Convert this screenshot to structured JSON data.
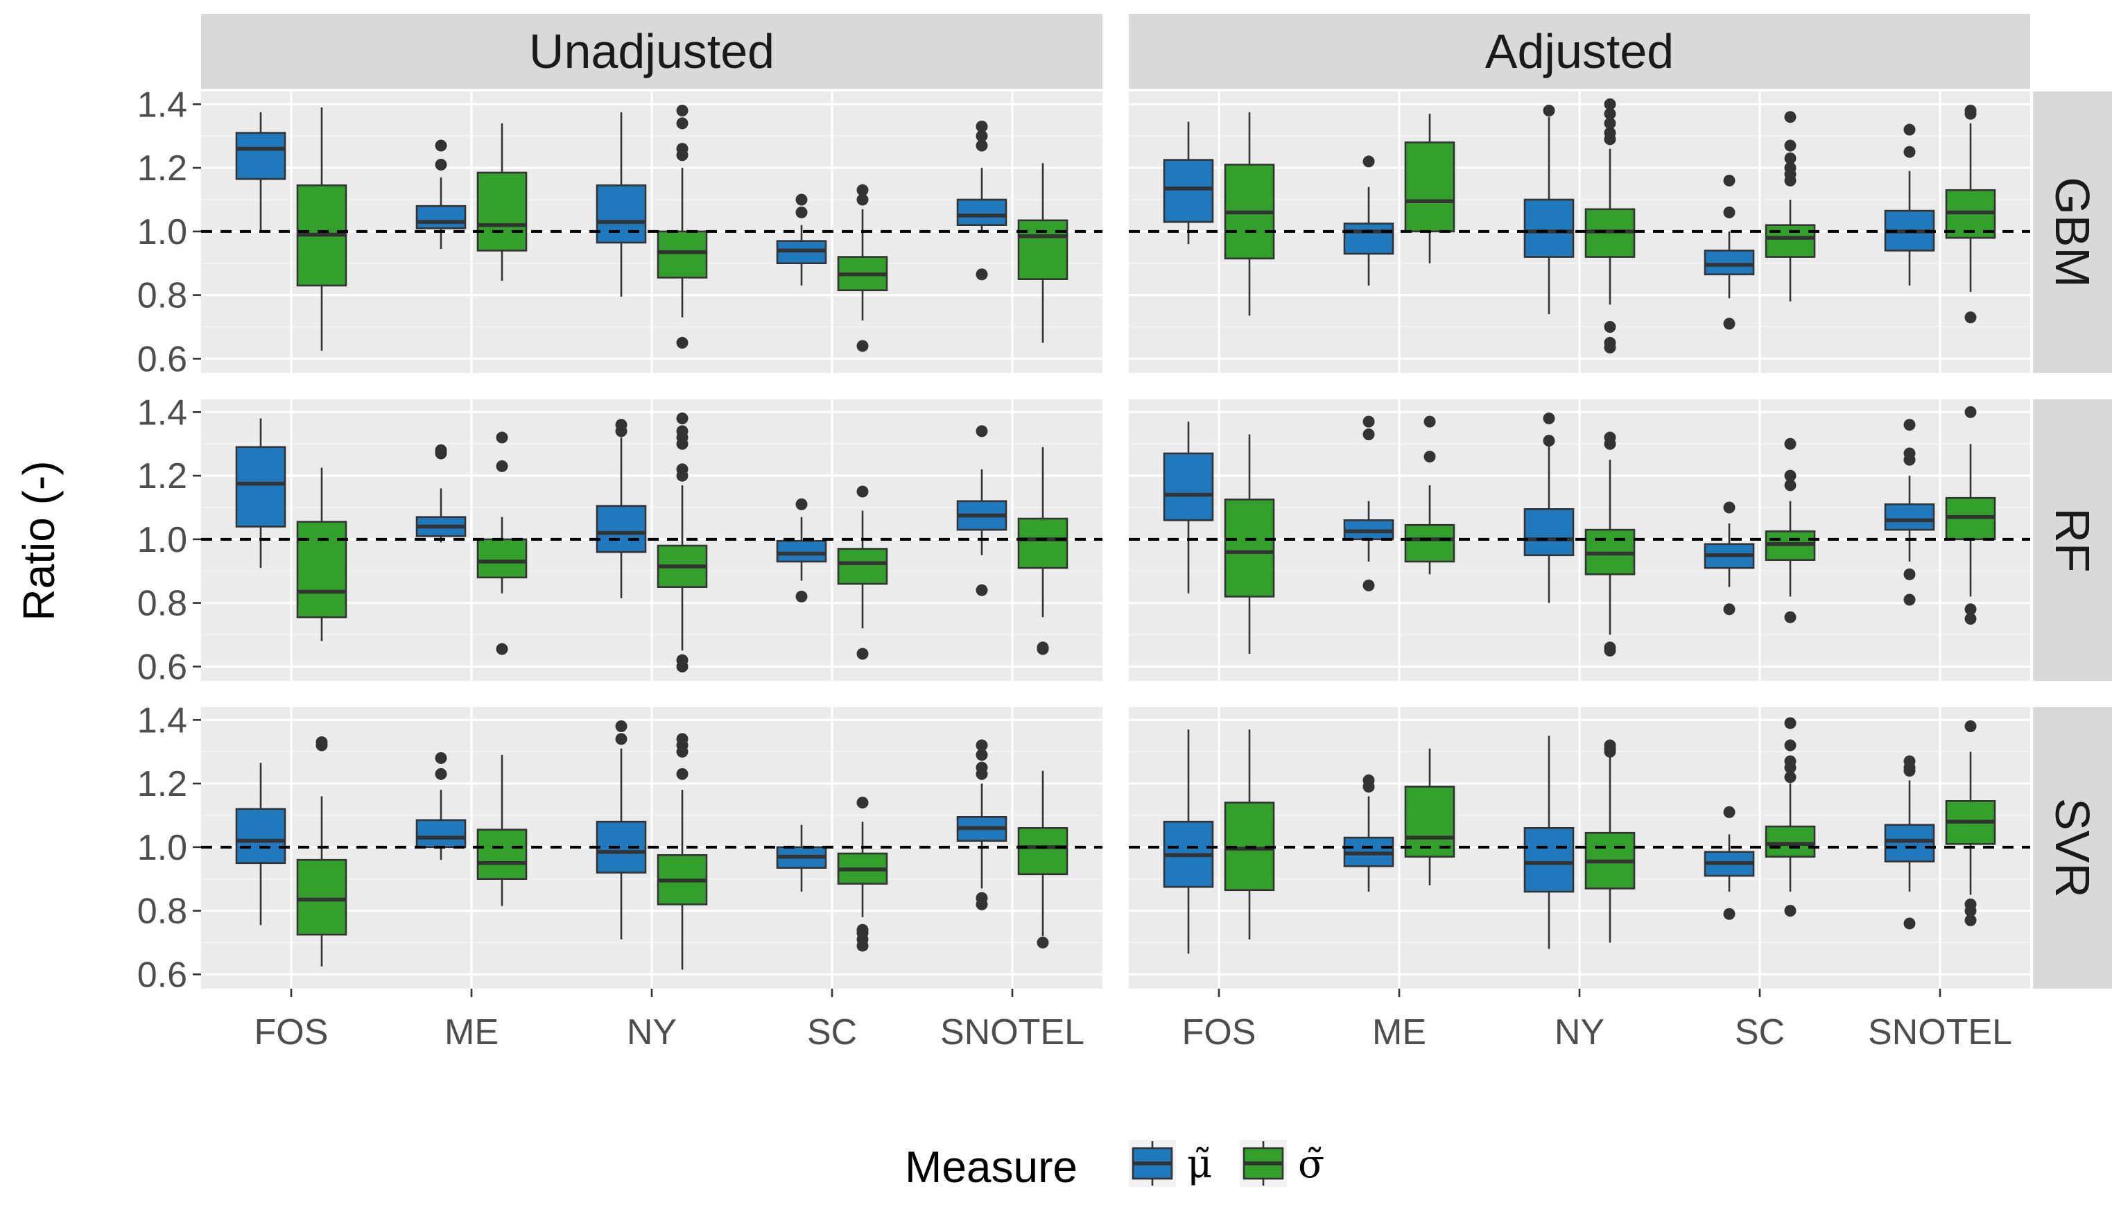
{
  "chart_data": {
    "type": "boxplot",
    "ylabel": "Ratio (-)",
    "xlabel": "",
    "ylim": [
      0.555,
      1.44
    ],
    "yticks": [
      0.6,
      0.8,
      1.0,
      1.2,
      1.4
    ],
    "ytick_labels": [
      "0.6",
      "0.8",
      "1.0",
      "1.2",
      "1.4"
    ],
    "reference_line": 1.0,
    "categories": [
      "FOS",
      "ME",
      "NY",
      "SC",
      "SNOTEL"
    ],
    "facet_columns": [
      "Unadjusted",
      "Adjusted"
    ],
    "facet_rows": [
      "GBM",
      "RF",
      "SVR"
    ],
    "legend": {
      "title": "Measure",
      "position": "bottom",
      "entries": [
        {
          "label": "μ̃",
          "color": "#2079bd"
        },
        {
          "label": "σ̃",
          "color": "#33a02c"
        }
      ]
    },
    "grid": true,
    "panels": [
      {
        "row": "GBM",
        "col": "Unadjusted",
        "boxes": [
          {
            "category": "FOS",
            "series": 0,
            "whislo": 1.0,
            "q1": 1.165,
            "med": 1.26,
            "q3": 1.31,
            "whishi": 1.375,
            "fliers": []
          },
          {
            "category": "FOS",
            "series": 1,
            "whislo": 0.625,
            "q1": 0.83,
            "med": 0.99,
            "q3": 1.145,
            "whishi": 1.39,
            "fliers": []
          },
          {
            "category": "ME",
            "series": 0,
            "whislo": 0.945,
            "q1": 1.01,
            "med": 1.03,
            "q3": 1.08,
            "whishi": 1.17,
            "fliers": [
              1.21,
              1.27
            ]
          },
          {
            "category": "ME",
            "series": 1,
            "whislo": 0.845,
            "q1": 0.94,
            "med": 1.02,
            "q3": 1.185,
            "whishi": 1.34,
            "fliers": []
          },
          {
            "category": "NY",
            "series": 0,
            "whislo": 0.795,
            "q1": 0.965,
            "med": 1.03,
            "q3": 1.145,
            "whishi": 1.375,
            "fliers": []
          },
          {
            "category": "NY",
            "series": 1,
            "whislo": 0.73,
            "q1": 0.855,
            "med": 0.935,
            "q3": 1.0,
            "whishi": 1.2,
            "fliers": [
              0.65,
              1.24,
              1.26,
              1.34,
              1.38
            ]
          },
          {
            "category": "SC",
            "series": 0,
            "whislo": 0.83,
            "q1": 0.9,
            "med": 0.94,
            "q3": 0.97,
            "whishi": 1.02,
            "fliers": [
              1.06,
              1.1
            ]
          },
          {
            "category": "SC",
            "series": 1,
            "whislo": 0.72,
            "q1": 0.815,
            "med": 0.865,
            "q3": 0.92,
            "whishi": 1.07,
            "fliers": [
              0.64,
              1.1,
              1.13
            ]
          },
          {
            "category": "SNOTEL",
            "series": 0,
            "whislo": 1.0,
            "q1": 1.02,
            "med": 1.05,
            "q3": 1.1,
            "whishi": 1.2,
            "fliers": [
              0.865,
              1.27,
              1.3,
              1.33
            ]
          },
          {
            "category": "SNOTEL",
            "series": 1,
            "whislo": 0.65,
            "q1": 0.85,
            "med": 0.985,
            "q3": 1.035,
            "whishi": 1.215,
            "fliers": []
          }
        ]
      },
      {
        "row": "GBM",
        "col": "Adjusted",
        "boxes": [
          {
            "category": "FOS",
            "series": 0,
            "whislo": 0.96,
            "q1": 1.03,
            "med": 1.135,
            "q3": 1.225,
            "whishi": 1.345,
            "fliers": []
          },
          {
            "category": "FOS",
            "series": 1,
            "whislo": 0.735,
            "q1": 0.915,
            "med": 1.06,
            "q3": 1.21,
            "whishi": 1.375,
            "fliers": []
          },
          {
            "category": "ME",
            "series": 0,
            "whislo": 0.83,
            "q1": 0.93,
            "med": 1.0,
            "q3": 1.025,
            "whishi": 1.14,
            "fliers": [
              1.22
            ]
          },
          {
            "category": "ME",
            "series": 1,
            "whislo": 0.9,
            "q1": 1.0,
            "med": 1.095,
            "q3": 1.28,
            "whishi": 1.37,
            "fliers": []
          },
          {
            "category": "NY",
            "series": 0,
            "whislo": 0.74,
            "q1": 0.92,
            "med": 1.0,
            "q3": 1.1,
            "whishi": 1.36,
            "fliers": [
              1.38
            ]
          },
          {
            "category": "NY",
            "series": 1,
            "whislo": 0.77,
            "q1": 0.92,
            "med": 1.0,
            "q3": 1.07,
            "whishi": 1.26,
            "fliers": [
              0.635,
              0.65,
              0.7,
              1.29,
              1.31,
              1.34,
              1.37,
              1.4
            ]
          },
          {
            "category": "SC",
            "series": 0,
            "whislo": 0.79,
            "q1": 0.865,
            "med": 0.895,
            "q3": 0.94,
            "whishi": 1.0,
            "fliers": [
              0.71,
              1.06,
              1.16
            ]
          },
          {
            "category": "SC",
            "series": 1,
            "whislo": 0.78,
            "q1": 0.92,
            "med": 0.98,
            "q3": 1.02,
            "whishi": 1.1,
            "fliers": [
              1.16,
              1.18,
              1.2,
              1.23,
              1.27,
              1.36
            ]
          },
          {
            "category": "SNOTEL",
            "series": 0,
            "whislo": 0.83,
            "q1": 0.94,
            "med": 1.0,
            "q3": 1.065,
            "whishi": 1.19,
            "fliers": [
              1.25,
              1.32
            ]
          },
          {
            "category": "SNOTEL",
            "series": 1,
            "whislo": 0.81,
            "q1": 0.98,
            "med": 1.06,
            "q3": 1.13,
            "whishi": 1.34,
            "fliers": [
              0.73,
              1.37,
              1.38
            ]
          }
        ]
      },
      {
        "row": "RF",
        "col": "Unadjusted",
        "boxes": [
          {
            "category": "FOS",
            "series": 0,
            "whislo": 0.91,
            "q1": 1.04,
            "med": 1.175,
            "q3": 1.29,
            "whishi": 1.38,
            "fliers": []
          },
          {
            "category": "FOS",
            "series": 1,
            "whislo": 0.68,
            "q1": 0.755,
            "med": 0.835,
            "q3": 1.055,
            "whishi": 1.225,
            "fliers": []
          },
          {
            "category": "ME",
            "series": 0,
            "whislo": 0.99,
            "q1": 1.01,
            "med": 1.04,
            "q3": 1.07,
            "whishi": 1.16,
            "fliers": [
              1.27,
              1.28
            ]
          },
          {
            "category": "ME",
            "series": 1,
            "whislo": 0.83,
            "q1": 0.88,
            "med": 0.93,
            "q3": 1.0,
            "whishi": 1.07,
            "fliers": [
              0.655,
              1.23,
              1.32
            ]
          },
          {
            "category": "NY",
            "series": 0,
            "whislo": 0.815,
            "q1": 0.96,
            "med": 1.02,
            "q3": 1.105,
            "whishi": 1.32,
            "fliers": [
              1.34,
              1.36
            ]
          },
          {
            "category": "NY",
            "series": 1,
            "whislo": 0.65,
            "q1": 0.85,
            "med": 0.915,
            "q3": 0.98,
            "whishi": 1.17,
            "fliers": [
              0.6,
              0.62,
              1.2,
              1.22,
              1.3,
              1.32,
              1.34,
              1.38
            ]
          },
          {
            "category": "SC",
            "series": 0,
            "whislo": 0.87,
            "q1": 0.93,
            "med": 0.955,
            "q3": 0.995,
            "whishi": 1.07,
            "fliers": [
              0.82,
              1.11
            ]
          },
          {
            "category": "SC",
            "series": 1,
            "whislo": 0.72,
            "q1": 0.86,
            "med": 0.925,
            "q3": 0.97,
            "whishi": 1.09,
            "fliers": [
              0.64,
              1.15
            ]
          },
          {
            "category": "SNOTEL",
            "series": 0,
            "whislo": 0.95,
            "q1": 1.03,
            "med": 1.075,
            "q3": 1.12,
            "whishi": 1.22,
            "fliers": [
              0.84,
              1.34
            ]
          },
          {
            "category": "SNOTEL",
            "series": 1,
            "whislo": 0.755,
            "q1": 0.91,
            "med": 1.0,
            "q3": 1.065,
            "whishi": 1.29,
            "fliers": [
              0.655,
              0.66
            ]
          }
        ]
      },
      {
        "row": "RF",
        "col": "Adjusted",
        "boxes": [
          {
            "category": "FOS",
            "series": 0,
            "whislo": 0.83,
            "q1": 1.06,
            "med": 1.14,
            "q3": 1.27,
            "whishi": 1.37,
            "fliers": []
          },
          {
            "category": "FOS",
            "series": 1,
            "whislo": 0.64,
            "q1": 0.82,
            "med": 0.96,
            "q3": 1.125,
            "whishi": 1.33,
            "fliers": []
          },
          {
            "category": "ME",
            "series": 0,
            "whislo": 0.93,
            "q1": 1.0,
            "med": 1.025,
            "q3": 1.06,
            "whishi": 1.12,
            "fliers": [
              0.855,
              1.33,
              1.37
            ]
          },
          {
            "category": "ME",
            "series": 1,
            "whislo": 0.89,
            "q1": 0.93,
            "med": 1.0,
            "q3": 1.045,
            "whishi": 1.17,
            "fliers": [
              1.26,
              1.37
            ]
          },
          {
            "category": "NY",
            "series": 0,
            "whislo": 0.8,
            "q1": 0.95,
            "med": 1.0,
            "q3": 1.095,
            "whishi": 1.3,
            "fliers": [
              1.31,
              1.38
            ]
          },
          {
            "category": "NY",
            "series": 1,
            "whislo": 0.7,
            "q1": 0.89,
            "med": 0.955,
            "q3": 1.03,
            "whishi": 1.25,
            "fliers": [
              0.65,
              0.66,
              1.3,
              1.32
            ]
          },
          {
            "category": "SC",
            "series": 0,
            "whislo": 0.85,
            "q1": 0.91,
            "med": 0.95,
            "q3": 0.985,
            "whishi": 1.05,
            "fliers": [
              0.78,
              1.1
            ]
          },
          {
            "category": "SC",
            "series": 1,
            "whislo": 0.82,
            "q1": 0.935,
            "med": 0.985,
            "q3": 1.025,
            "whishi": 1.12,
            "fliers": [
              0.755,
              1.17,
              1.2,
              1.3
            ]
          },
          {
            "category": "SNOTEL",
            "series": 0,
            "whislo": 0.93,
            "q1": 1.03,
            "med": 1.06,
            "q3": 1.11,
            "whishi": 1.2,
            "fliers": [
              0.81,
              0.89,
              1.25,
              1.27,
              1.36
            ]
          },
          {
            "category": "SNOTEL",
            "series": 1,
            "whislo": 0.82,
            "q1": 1.0,
            "med": 1.07,
            "q3": 1.13,
            "whishi": 1.3,
            "fliers": [
              0.75,
              0.78,
              1.4
            ]
          }
        ]
      },
      {
        "row": "SVR",
        "col": "Unadjusted",
        "boxes": [
          {
            "category": "FOS",
            "series": 0,
            "whislo": 0.755,
            "q1": 0.95,
            "med": 1.02,
            "q3": 1.12,
            "whishi": 1.265,
            "fliers": []
          },
          {
            "category": "FOS",
            "series": 1,
            "whislo": 0.625,
            "q1": 0.725,
            "med": 0.835,
            "q3": 0.96,
            "whishi": 1.16,
            "fliers": [
              1.32,
              1.33
            ]
          },
          {
            "category": "ME",
            "series": 0,
            "whislo": 0.96,
            "q1": 1.0,
            "med": 1.03,
            "q3": 1.085,
            "whishi": 1.18,
            "fliers": [
              1.23,
              1.28
            ]
          },
          {
            "category": "ME",
            "series": 1,
            "whislo": 0.815,
            "q1": 0.9,
            "med": 0.95,
            "q3": 1.055,
            "whishi": 1.29,
            "fliers": []
          },
          {
            "category": "NY",
            "series": 0,
            "whislo": 0.71,
            "q1": 0.92,
            "med": 0.985,
            "q3": 1.08,
            "whishi": 1.31,
            "fliers": [
              1.34,
              1.38
            ]
          },
          {
            "category": "NY",
            "series": 1,
            "whislo": 0.615,
            "q1": 0.82,
            "med": 0.895,
            "q3": 0.975,
            "whishi": 1.18,
            "fliers": [
              1.23,
              1.3,
              1.32,
              1.34
            ]
          },
          {
            "category": "SC",
            "series": 0,
            "whislo": 0.86,
            "q1": 0.935,
            "med": 0.97,
            "q3": 1.0,
            "whishi": 1.07,
            "fliers": []
          },
          {
            "category": "SC",
            "series": 1,
            "whislo": 0.78,
            "q1": 0.885,
            "med": 0.93,
            "q3": 0.98,
            "whishi": 1.08,
            "fliers": [
              0.69,
              0.71,
              0.73,
              0.74,
              1.14
            ]
          },
          {
            "category": "SNOTEL",
            "series": 0,
            "whislo": 0.87,
            "q1": 1.02,
            "med": 1.06,
            "q3": 1.095,
            "whishi": 1.2,
            "fliers": [
              0.82,
              0.84,
              1.23,
              1.25,
              1.29,
              1.32
            ]
          },
          {
            "category": "SNOTEL",
            "series": 1,
            "whislo": 0.72,
            "q1": 0.915,
            "med": 1.0,
            "q3": 1.06,
            "whishi": 1.24,
            "fliers": [
              0.7
            ]
          }
        ]
      },
      {
        "row": "SVR",
        "col": "Adjusted",
        "boxes": [
          {
            "category": "FOS",
            "series": 0,
            "whislo": 0.665,
            "q1": 0.875,
            "med": 0.975,
            "q3": 1.08,
            "whishi": 1.37,
            "fliers": []
          },
          {
            "category": "FOS",
            "series": 1,
            "whislo": 0.71,
            "q1": 0.865,
            "med": 0.995,
            "q3": 1.14,
            "whishi": 1.37,
            "fliers": []
          },
          {
            "category": "ME",
            "series": 0,
            "whislo": 0.86,
            "q1": 0.94,
            "med": 0.98,
            "q3": 1.03,
            "whishi": 1.16,
            "fliers": [
              1.19,
              1.21
            ]
          },
          {
            "category": "ME",
            "series": 1,
            "whislo": 0.88,
            "q1": 0.97,
            "med": 1.03,
            "q3": 1.19,
            "whishi": 1.31,
            "fliers": []
          },
          {
            "category": "NY",
            "series": 0,
            "whislo": 0.68,
            "q1": 0.86,
            "med": 0.95,
            "q3": 1.06,
            "whishi": 1.35,
            "fliers": []
          },
          {
            "category": "NY",
            "series": 1,
            "whislo": 0.7,
            "q1": 0.87,
            "med": 0.955,
            "q3": 1.045,
            "whishi": 1.29,
            "fliers": [
              1.3,
              1.31,
              1.32
            ]
          },
          {
            "category": "SC",
            "series": 0,
            "whislo": 0.86,
            "q1": 0.91,
            "med": 0.95,
            "q3": 0.985,
            "whishi": 1.04,
            "fliers": [
              0.79,
              1.11
            ]
          },
          {
            "category": "SC",
            "series": 1,
            "whislo": 0.86,
            "q1": 0.97,
            "med": 1.01,
            "q3": 1.065,
            "whishi": 1.2,
            "fliers": [
              0.8,
              1.22,
              1.25,
              1.27,
              1.32,
              1.39
            ]
          },
          {
            "category": "SNOTEL",
            "series": 0,
            "whislo": 0.86,
            "q1": 0.955,
            "med": 1.02,
            "q3": 1.07,
            "whishi": 1.21,
            "fliers": [
              0.76,
              1.24,
              1.25,
              1.27
            ]
          },
          {
            "category": "SNOTEL",
            "series": 1,
            "whislo": 0.85,
            "q1": 1.01,
            "med": 1.08,
            "q3": 1.145,
            "whishi": 1.3,
            "fliers": [
              0.77,
              0.8,
              0.82,
              1.38
            ]
          }
        ]
      }
    ]
  }
}
